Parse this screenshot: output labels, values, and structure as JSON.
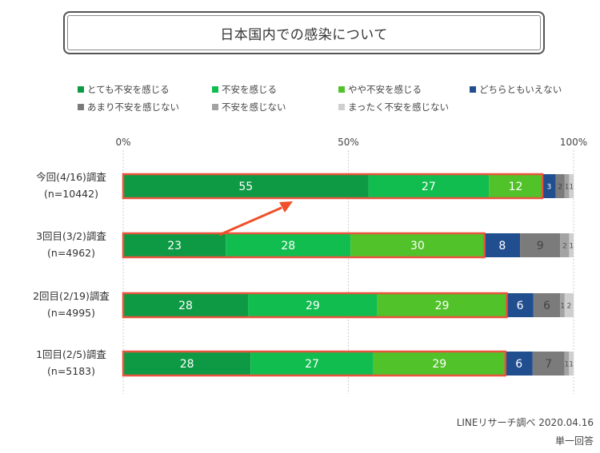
{
  "chart_data": {
    "type": "bar",
    "title": "日本国内での感染について",
    "orientation": "horizontal-stacked-percent",
    "x_ticks": [
      "0%",
      "50%",
      "100%"
    ],
    "categories": [
      {
        "label": "今回(4/16)調査",
        "n": "(n=10442)"
      },
      {
        "label": "3回目(3/2)調査",
        "n": "(n=4962)"
      },
      {
        "label": "2回目(2/19)調査",
        "n": "(n=4995)"
      },
      {
        "label": "1回目(2/5)調査",
        "n": "(n=5183)"
      }
    ],
    "series": [
      {
        "name": "とても不安を感じる",
        "color": "#0e9a45",
        "values": [
          55,
          23,
          28,
          28
        ]
      },
      {
        "name": "不安を感じる",
        "color": "#12bd4f",
        "values": [
          27,
          28,
          29,
          27
        ]
      },
      {
        "name": "やや不安を感じる",
        "color": "#52c22a",
        "values": [
          12,
          30,
          29,
          29
        ]
      },
      {
        "name": "どちらともいえない",
        "color": "#214e8f",
        "values": [
          3,
          8,
          6,
          6
        ]
      },
      {
        "name": "あまり不安を感じない",
        "color": "#7b7b7b",
        "values": [
          2,
          9,
          6,
          7
        ]
      },
      {
        "name": "不安を感じない",
        "color": "#a3a3a3",
        "values": [
          1,
          2,
          1,
          1
        ]
      },
      {
        "name": "まったく不安を感じない",
        "color": "#cfcfcf",
        "values": [
          1,
          1,
          2,
          1
        ]
      }
    ],
    "highlight_color": "#e8553d",
    "highlighted_series_count": 3,
    "annotation_arrow": {
      "from_category": 1,
      "to_category": 0
    }
  },
  "footer": {
    "source": "LINEリサーチ調べ 2020.04.16",
    "note": "単一回答"
  }
}
